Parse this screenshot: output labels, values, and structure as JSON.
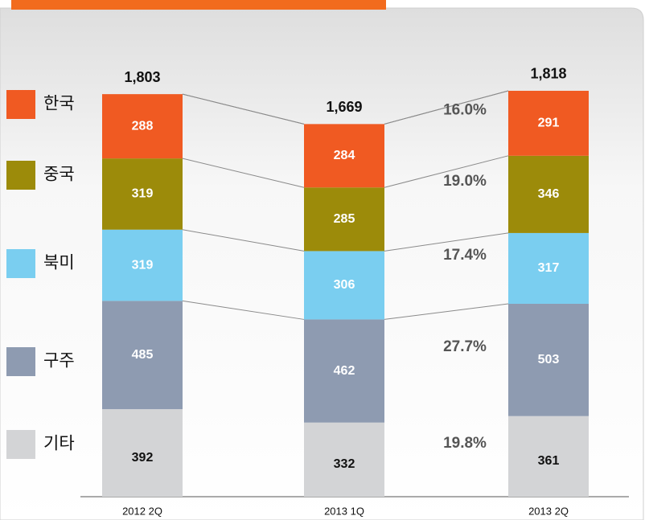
{
  "chart_data": {
    "type": "stacked-bar",
    "categories": [
      "2012 2Q",
      "2013 1Q",
      "2013 2Q"
    ],
    "series": [
      {
        "name": "기타",
        "color": "#d3d4d6",
        "values": [
          392,
          332,
          361
        ],
        "share": 19.8,
        "share_label": "19.8%"
      },
      {
        "name": "구주",
        "color": "#8e9bb1",
        "values": [
          485,
          462,
          503
        ],
        "share": 27.7,
        "share_label": "27.7%"
      },
      {
        "name": "북미",
        "color": "#7acef0",
        "values": [
          319,
          306,
          317
        ],
        "share": 17.4,
        "share_label": "17.4%"
      },
      {
        "name": "중국",
        "color": "#9c8b0a",
        "values": [
          319,
          285,
          346
        ],
        "share": 19.0,
        "share_label": "19.0%"
      },
      {
        "name": "한국",
        "color": "#f05a22",
        "values": [
          288,
          284,
          291
        ],
        "share": 16.0,
        "share_label": "16.0%"
      }
    ],
    "totals": [
      1803,
      1669,
      1818
    ],
    "total_labels": [
      "1,803",
      "1,669",
      "1,818"
    ]
  }
}
